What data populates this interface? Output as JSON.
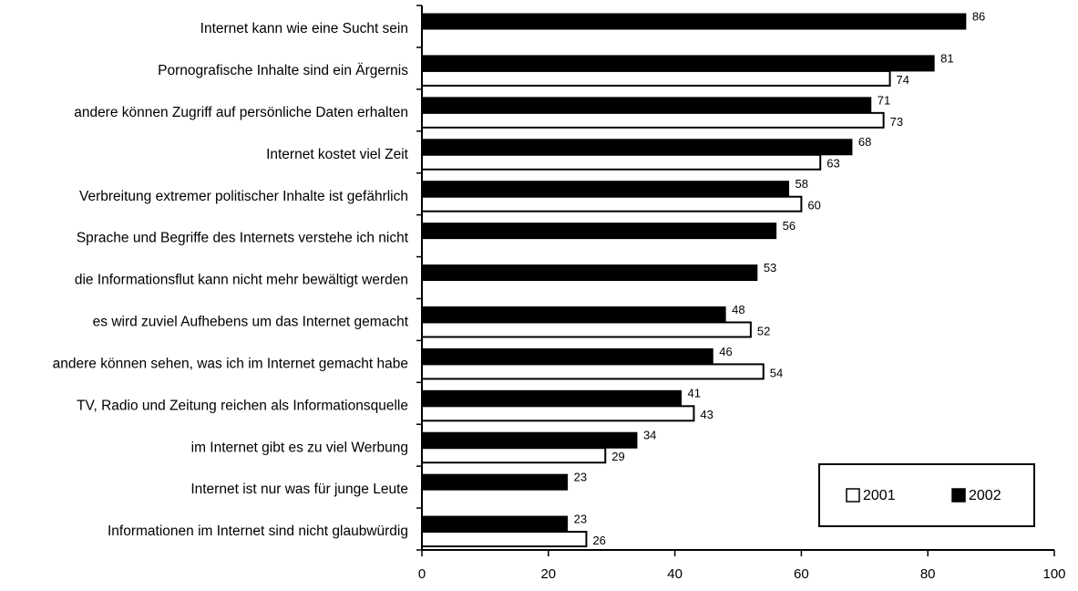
{
  "chart_data": {
    "type": "bar",
    "orientation": "horizontal",
    "categories": [
      "Internet kann wie eine Sucht sein",
      "Pornografische Inhalte sind ein Ärgernis",
      "andere können Zugriff auf persönliche Daten erhalten",
      "Internet kostet viel Zeit",
      "Verbreitung extremer politischer Inhalte ist gefährlich",
      "Sprache und Begriffe des Internets verstehe ich nicht",
      "die Informationsflut kann nicht mehr bewältigt werden",
      "es wird zuviel Aufhebens um das Internet gemacht",
      "andere können sehen, was ich im Internet gemacht habe",
      "TV, Radio und Zeitung reichen als Informationsquelle",
      "im Internet gibt es zu viel Werbung",
      "Internet ist nur was für junge Leute",
      "Informationen im Internet sind nicht glaubwürdig"
    ],
    "series": [
      {
        "name": "2002",
        "color": "#000000",
        "values": [
          86,
          81,
          71,
          68,
          58,
          56,
          53,
          48,
          46,
          41,
          34,
          23,
          23
        ]
      },
      {
        "name": "2001",
        "color": "#ffffff",
        "values": [
          null,
          74,
          73,
          63,
          60,
          null,
          null,
          52,
          54,
          43,
          29,
          null,
          26
        ]
      }
    ],
    "xlim": [
      0,
      100
    ],
    "xticks": [
      0,
      20,
      40,
      60,
      80,
      100
    ],
    "grid": false,
    "legend": {
      "placement": "bottom-right",
      "entries": [
        "2001",
        "2002"
      ]
    },
    "title": "",
    "xlabel": "",
    "ylabel": ""
  }
}
